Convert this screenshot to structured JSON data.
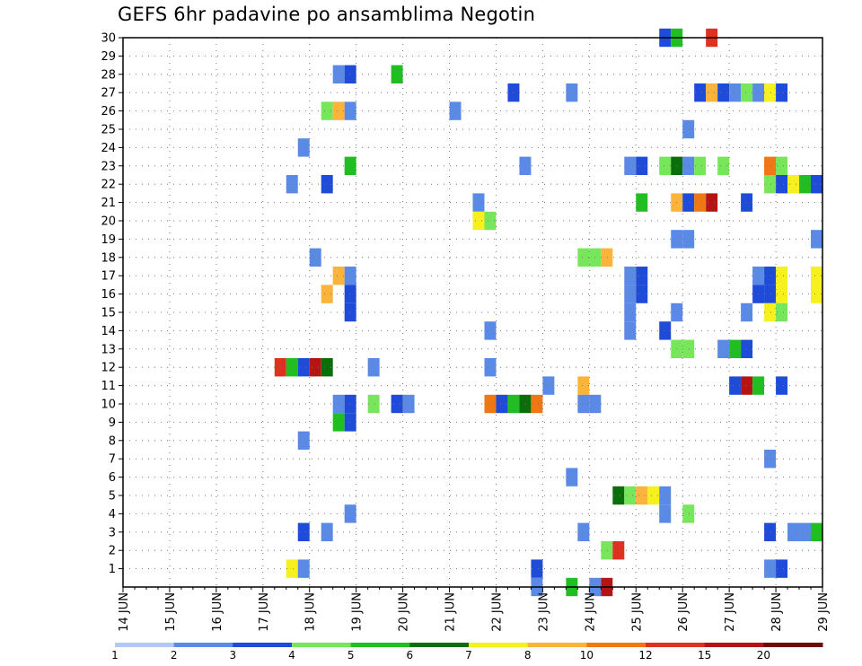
{
  "chart_data": {
    "type": "heatmap",
    "title": "GEFS 6hr padavine po ansamblima Negotin",
    "xlabel": "",
    "ylabel": "",
    "x_tick_labels": [
      "14 JUN",
      "15 JUN",
      "16 JUN",
      "17 JUN",
      "18 JUN",
      "19 JUN",
      "20 JUN",
      "21 JUN",
      "22 JUN",
      "23 JUN",
      "24 JUN",
      "25 JUN",
      "26 JUN",
      "27 JUN",
      "28 JUN",
      "29 JUN"
    ],
    "x_unit": "6-hour step (0 = 14 JUN 00Z, 4 steps per day)",
    "xlim": [
      0,
      60
    ],
    "y_tick_labels": [
      "1",
      "2",
      "3",
      "4",
      "5",
      "6",
      "7",
      "8",
      "9",
      "10",
      "11",
      "12",
      "13",
      "14",
      "15",
      "16",
      "17",
      "18",
      "19",
      "20",
      "21",
      "22",
      "23",
      "24",
      "25",
      "26",
      "27",
      "28",
      "29",
      "30"
    ],
    "ylim": [
      0,
      30
    ],
    "grid": true,
    "colorbar": {
      "labels": [
        "1",
        "2",
        "3",
        "4",
        "5",
        "6",
        "7",
        "8",
        "10",
        "12",
        "15",
        "20"
      ],
      "colors": [
        "#b4c8f5",
        "#5a8ae6",
        "#1e4bd7",
        "#78e65a",
        "#20be20",
        "#0a6e0a",
        "#f5f01e",
        "#fab43c",
        "#f07814",
        "#dc321e",
        "#b41414",
        "#6e0a0a"
      ]
    },
    "cells": [
      {
        "m": 30,
        "t": 46.5,
        "c": 2
      },
      {
        "m": 30,
        "t": 47.5,
        "c": 4
      },
      {
        "m": 30,
        "t": 50.5,
        "c": 9
      },
      {
        "m": 28,
        "t": 18.5,
        "c": 1
      },
      {
        "m": 28,
        "t": 19.5,
        "c": 2
      },
      {
        "m": 28,
        "t": 23.5,
        "c": 4
      },
      {
        "m": 27,
        "t": 33.5,
        "c": 2
      },
      {
        "m": 27,
        "t": 38.5,
        "c": 1
      },
      {
        "m": 27,
        "t": 49.5,
        "c": 2
      },
      {
        "m": 27,
        "t": 50.5,
        "c": 7
      },
      {
        "m": 27,
        "t": 51.5,
        "c": 2
      },
      {
        "m": 27,
        "t": 52.5,
        "c": 1
      },
      {
        "m": 27,
        "t": 53.5,
        "c": 3
      },
      {
        "m": 27,
        "t": 54.5,
        "c": 1
      },
      {
        "m": 27,
        "t": 55.5,
        "c": 6
      },
      {
        "m": 27,
        "t": 56.5,
        "c": 2
      },
      {
        "m": 26,
        "t": 17.5,
        "c": 3
      },
      {
        "m": 26,
        "t": 18.5,
        "c": 7
      },
      {
        "m": 26,
        "t": 19.5,
        "c": 1
      },
      {
        "m": 26,
        "t": 28.5,
        "c": 1
      },
      {
        "m": 25,
        "t": 48.5,
        "c": 1
      },
      {
        "m": 24,
        "t": 15.5,
        "c": 1
      },
      {
        "m": 23,
        "t": 19.5,
        "c": 4
      },
      {
        "m": 23,
        "t": 34.5,
        "c": 1
      },
      {
        "m": 23,
        "t": 43.5,
        "c": 1
      },
      {
        "m": 23,
        "t": 44.5,
        "c": 2
      },
      {
        "m": 23,
        "t": 46.5,
        "c": 3
      },
      {
        "m": 23,
        "t": 47.5,
        "c": 5
      },
      {
        "m": 23,
        "t": 48.5,
        "c": 1
      },
      {
        "m": 23,
        "t": 49.5,
        "c": 3
      },
      {
        "m": 23,
        "t": 51.5,
        "c": 3
      },
      {
        "m": 23,
        "t": 55.5,
        "c": 8
      },
      {
        "m": 23,
        "t": 56.5,
        "c": 3
      },
      {
        "m": 22,
        "t": 14.5,
        "c": 1
      },
      {
        "m": 22,
        "t": 17.5,
        "c": 2
      },
      {
        "m": 22,
        "t": 55.5,
        "c": 3
      },
      {
        "m": 22,
        "t": 56.5,
        "c": 2
      },
      {
        "m": 22,
        "t": 57.5,
        "c": 6
      },
      {
        "m": 22,
        "t": 58.5,
        "c": 4
      },
      {
        "m": 22,
        "t": 59.5,
        "c": 2
      },
      {
        "m": 21,
        "t": 30.5,
        "c": 1
      },
      {
        "m": 21,
        "t": 44.5,
        "c": 4
      },
      {
        "m": 21,
        "t": 47.5,
        "c": 7
      },
      {
        "m": 21,
        "t": 48.5,
        "c": 2
      },
      {
        "m": 21,
        "t": 49.5,
        "c": 8
      },
      {
        "m": 21,
        "t": 50.5,
        "c": 10
      },
      {
        "m": 21,
        "t": 53.5,
        "c": 2
      },
      {
        "m": 20,
        "t": 30.5,
        "c": 6
      },
      {
        "m": 20,
        "t": 31.5,
        "c": 3
      },
      {
        "m": 19,
        "t": 47.5,
        "c": 1
      },
      {
        "m": 19,
        "t": 48.5,
        "c": 1
      },
      {
        "m": 19,
        "t": 59.5,
        "c": 1
      },
      {
        "m": 18,
        "t": 16.5,
        "c": 1
      },
      {
        "m": 18,
        "t": 39.5,
        "c": 3
      },
      {
        "m": 18,
        "t": 40.5,
        "c": 3
      },
      {
        "m": 18,
        "t": 41.5,
        "c": 7
      },
      {
        "m": 17,
        "t": 18.5,
        "c": 7
      },
      {
        "m": 17,
        "t": 19.5,
        "c": 1
      },
      {
        "m": 17,
        "t": 43.5,
        "c": 1
      },
      {
        "m": 17,
        "t": 44.5,
        "c": 2
      },
      {
        "m": 17,
        "t": 54.5,
        "c": 1
      },
      {
        "m": 17,
        "t": 55.5,
        "c": 2
      },
      {
        "m": 17,
        "t": 56.5,
        "c": 6
      },
      {
        "m": 17,
        "t": 59.5,
        "c": 6
      },
      {
        "m": 16,
        "t": 17.5,
        "c": 7
      },
      {
        "m": 16,
        "t": 19.5,
        "c": 2
      },
      {
        "m": 16,
        "t": 43.5,
        "c": 1
      },
      {
        "m": 16,
        "t": 44.5,
        "c": 2
      },
      {
        "m": 16,
        "t": 54.5,
        "c": 2
      },
      {
        "m": 16,
        "t": 55.5,
        "c": 2
      },
      {
        "m": 16,
        "t": 56.5,
        "c": 6
      },
      {
        "m": 16,
        "t": 59.5,
        "c": 6
      },
      {
        "m": 15,
        "t": 19.5,
        "c": 2
      },
      {
        "m": 15,
        "t": 43.5,
        "c": 1
      },
      {
        "m": 15,
        "t": 47.5,
        "c": 1
      },
      {
        "m": 15,
        "t": 53.5,
        "c": 1
      },
      {
        "m": 15,
        "t": 55.5,
        "c": 6
      },
      {
        "m": 15,
        "t": 56.5,
        "c": 3
      },
      {
        "m": 14,
        "t": 31.5,
        "c": 1
      },
      {
        "m": 14,
        "t": 43.5,
        "c": 1
      },
      {
        "m": 14,
        "t": 46.5,
        "c": 2
      },
      {
        "m": 13,
        "t": 47.5,
        "c": 3
      },
      {
        "m": 13,
        "t": 48.5,
        "c": 3
      },
      {
        "m": 13,
        "t": 51.5,
        "c": 1
      },
      {
        "m": 13,
        "t": 52.5,
        "c": 4
      },
      {
        "m": 13,
        "t": 53.5,
        "c": 2
      },
      {
        "m": 12,
        "t": 13.5,
        "c": 9
      },
      {
        "m": 12,
        "t": 14.5,
        "c": 4
      },
      {
        "m": 12,
        "t": 15.5,
        "c": 2
      },
      {
        "m": 12,
        "t": 16.5,
        "c": 10
      },
      {
        "m": 12,
        "t": 17.5,
        "c": 5
      },
      {
        "m": 12,
        "t": 21.5,
        "c": 1
      },
      {
        "m": 12,
        "t": 31.5,
        "c": 1
      },
      {
        "m": 11,
        "t": 36.5,
        "c": 1
      },
      {
        "m": 11,
        "t": 39.5,
        "c": 7
      },
      {
        "m": 11,
        "t": 52.5,
        "c": 2
      },
      {
        "m": 11,
        "t": 53.5,
        "c": 10
      },
      {
        "m": 11,
        "t": 54.5,
        "c": 4
      },
      {
        "m": 11,
        "t": 56.5,
        "c": 2
      },
      {
        "m": 10,
        "t": 18.5,
        "c": 1
      },
      {
        "m": 10,
        "t": 19.5,
        "c": 2
      },
      {
        "m": 10,
        "t": 21.5,
        "c": 3
      },
      {
        "m": 10,
        "t": 23.5,
        "c": 2
      },
      {
        "m": 10,
        "t": 24.5,
        "c": 1
      },
      {
        "m": 10,
        "t": 31.5,
        "c": 8
      },
      {
        "m": 10,
        "t": 32.5,
        "c": 2
      },
      {
        "m": 10,
        "t": 33.5,
        "c": 4
      },
      {
        "m": 10,
        "t": 34.5,
        "c": 5
      },
      {
        "m": 10,
        "t": 35.5,
        "c": 8
      },
      {
        "m": 10,
        "t": 39.5,
        "c": 1
      },
      {
        "m": 10,
        "t": 40.5,
        "c": 1
      },
      {
        "m": 9,
        "t": 18.5,
        "c": 4
      },
      {
        "m": 9,
        "t": 19.5,
        "c": 2
      },
      {
        "m": 8,
        "t": 15.5,
        "c": 1
      },
      {
        "m": 7,
        "t": 55.5,
        "c": 1
      },
      {
        "m": 6,
        "t": 38.5,
        "c": 1
      },
      {
        "m": 5,
        "t": 42.5,
        "c": 5
      },
      {
        "m": 5,
        "t": 43.5,
        "c": 3
      },
      {
        "m": 5,
        "t": 44.5,
        "c": 7
      },
      {
        "m": 5,
        "t": 45.5,
        "c": 6
      },
      {
        "m": 5,
        "t": 46.5,
        "c": 1
      },
      {
        "m": 4,
        "t": 19.5,
        "c": 1
      },
      {
        "m": 4,
        "t": 46.5,
        "c": 1
      },
      {
        "m": 4,
        "t": 48.5,
        "c": 3
      },
      {
        "m": 3,
        "t": 15.5,
        "c": 2
      },
      {
        "m": 3,
        "t": 17.5,
        "c": 1
      },
      {
        "m": 3,
        "t": 39.5,
        "c": 1
      },
      {
        "m": 3,
        "t": 55.5,
        "c": 2
      },
      {
        "m": 3,
        "t": 57.5,
        "c": 1
      },
      {
        "m": 3,
        "t": 58.5,
        "c": 1
      },
      {
        "m": 3,
        "t": 59.5,
        "c": 4
      },
      {
        "m": 2,
        "t": 41.5,
        "c": 3
      },
      {
        "m": 2,
        "t": 42.5,
        "c": 9
      },
      {
        "m": 1,
        "t": 14.5,
        "c": 6
      },
      {
        "m": 1,
        "t": 15.5,
        "c": 1
      },
      {
        "m": 1,
        "t": 35.5,
        "c": 2
      },
      {
        "m": 1,
        "t": 55.5,
        "c": 1
      },
      {
        "m": 1,
        "t": 56.5,
        "c": 2
      },
      {
        "m": 0,
        "t": 35.5,
        "c": 1
      },
      {
        "m": 0,
        "t": 38.5,
        "c": 4
      },
      {
        "m": 0,
        "t": 40.5,
        "c": 1
      },
      {
        "m": 0,
        "t": 41.5,
        "c": 10
      }
    ]
  }
}
